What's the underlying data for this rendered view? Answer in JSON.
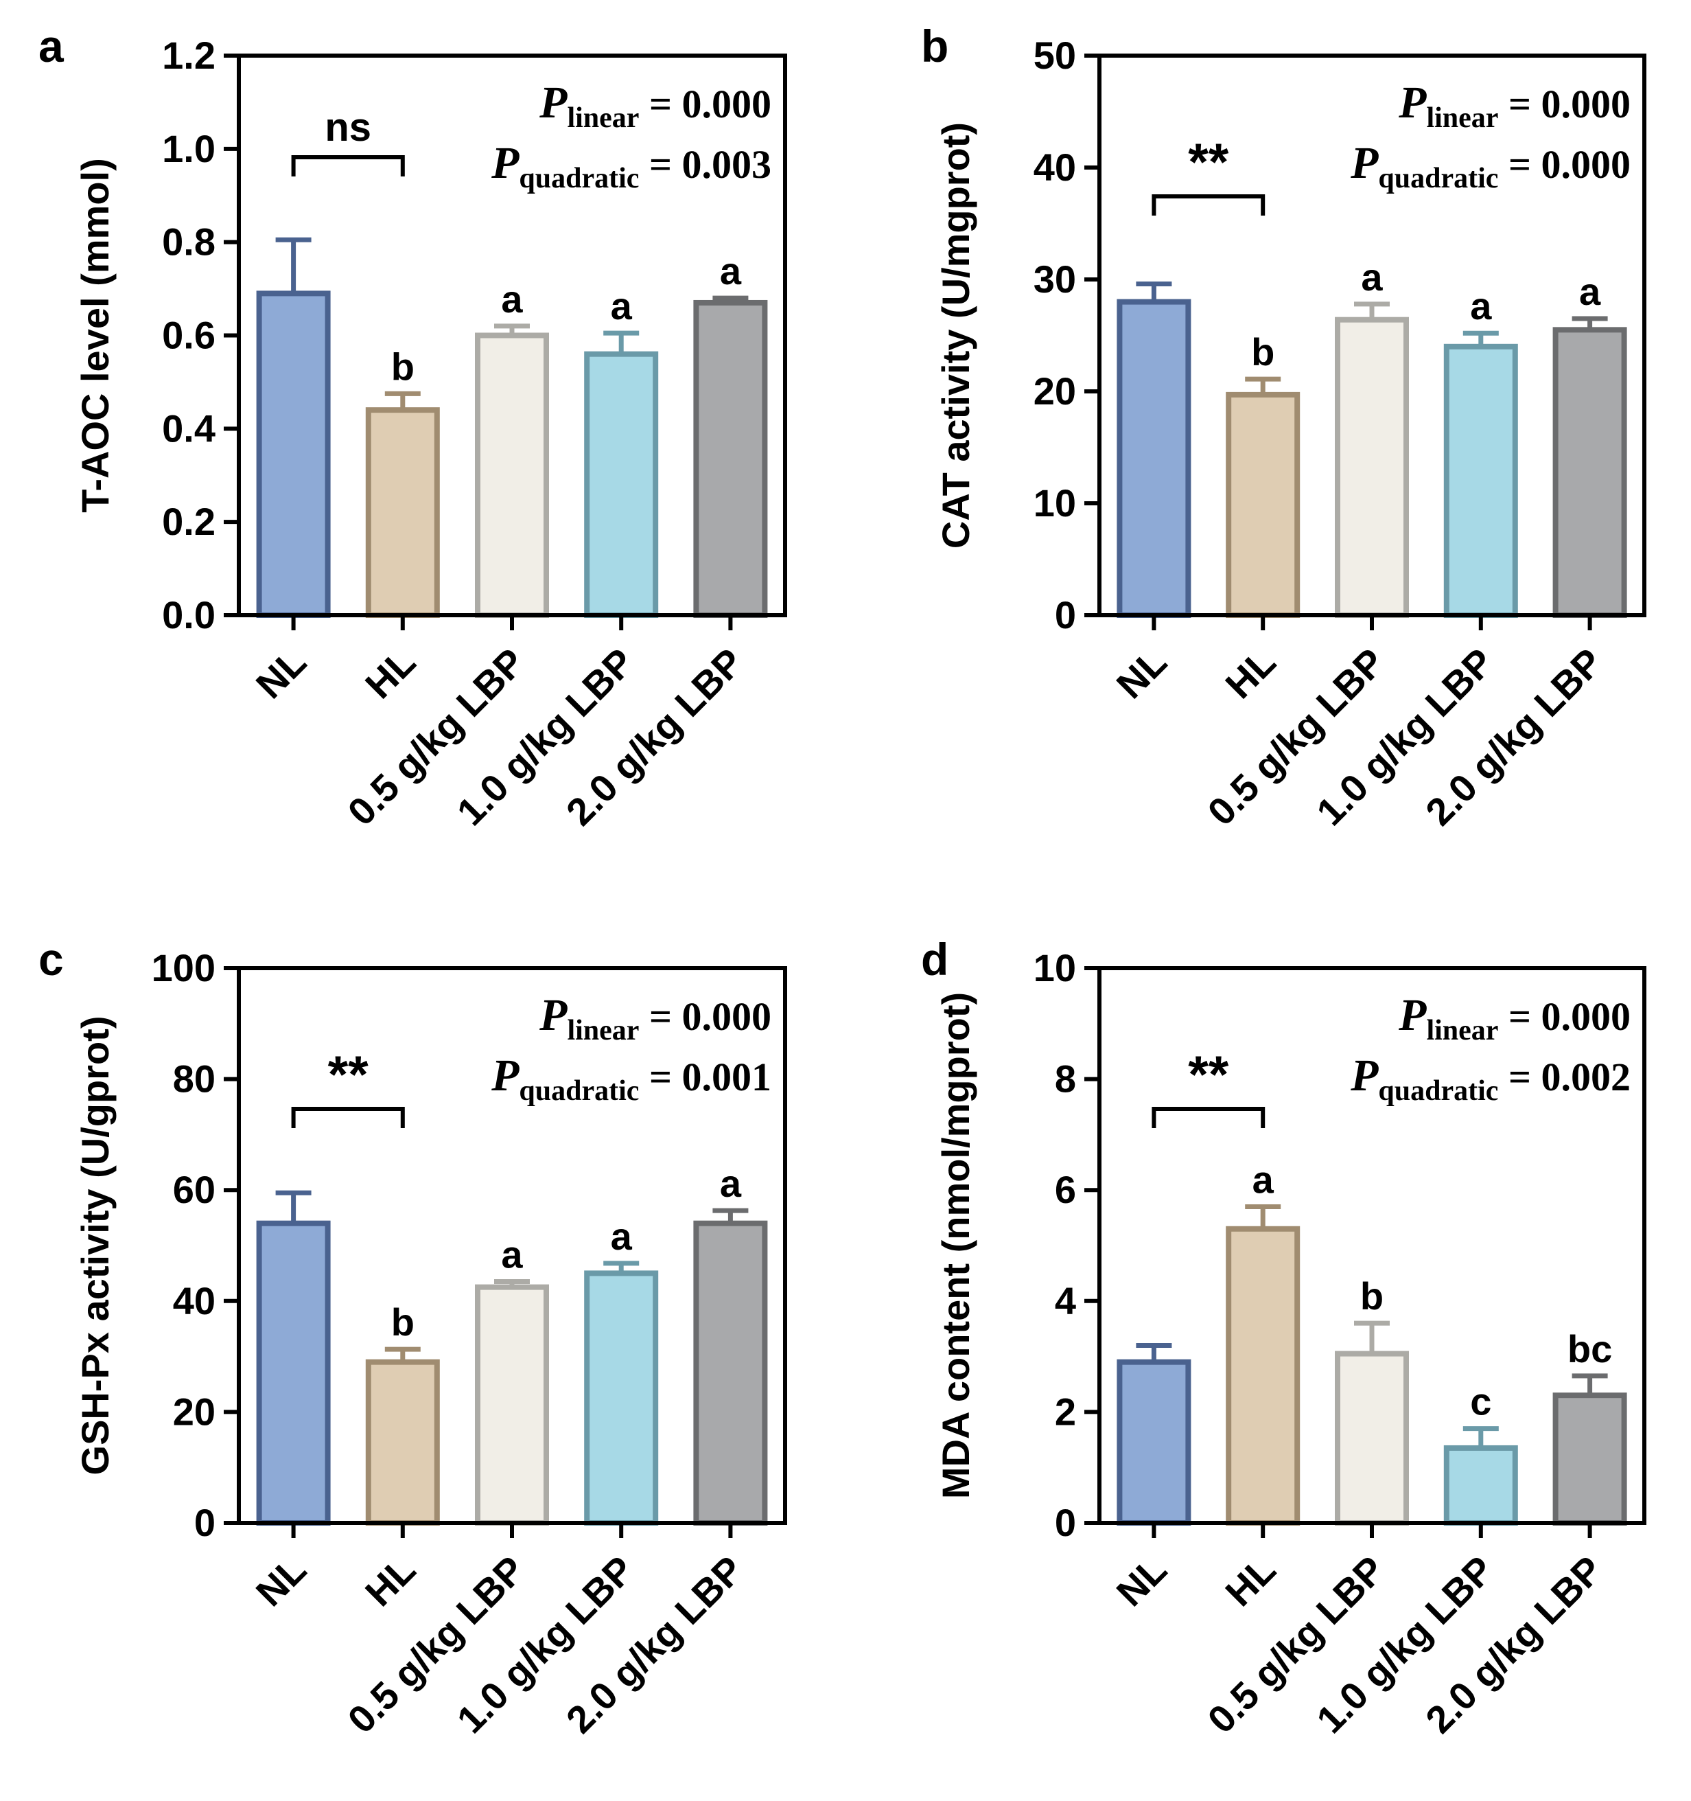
{
  "colors": {
    "NL": {
      "fill": "#8eaad6",
      "stroke": "#4a628f"
    },
    "HL": {
      "fill": "#dfcdb3",
      "stroke": "#a08c70"
    },
    "0.5 g/kg LBP": {
      "fill": "#f1eee7",
      "stroke": "#acaba6"
    },
    "1.0 g/kg LBP": {
      "fill": "#a7d9e6",
      "stroke": "#6a9aa8"
    },
    "2.0 g/kg LBP": {
      "fill": "#a8a9ab",
      "stroke": "#6b6c6e"
    },
    "axis": "#000000"
  },
  "chart_data": [
    {
      "panel": "a",
      "type": "bar",
      "ylabel": "T-AOC level (mmol)",
      "ylim": [
        0,
        1.2
      ],
      "yticks": [
        0.0,
        0.2,
        0.4,
        0.6,
        0.8,
        1.0,
        1.2
      ],
      "ytick_labels": [
        "0.0",
        "0.2",
        "0.4",
        "0.6",
        "0.8",
        "1.0",
        "1.2"
      ],
      "categories": [
        "NL",
        "HL",
        "0.5 g/kg LBP",
        "1.0 g/kg LBP",
        "2.0 g/kg LBP"
      ],
      "values": [
        0.69,
        0.44,
        0.6,
        0.56,
        0.67
      ],
      "errors": [
        0.115,
        0.035,
        0.02,
        0.045,
        0.01
      ],
      "letters": [
        "",
        "b",
        "a",
        "a",
        "a"
      ],
      "significance": "ns",
      "p_linear": "0.000",
      "p_quadratic": "0.003"
    },
    {
      "panel": "b",
      "type": "bar",
      "ylabel": "CAT activity (U/mgprot)",
      "ylim": [
        0,
        50
      ],
      "yticks": [
        0,
        10,
        20,
        30,
        40,
        50
      ],
      "ytick_labels": [
        "0",
        "10",
        "20",
        "30",
        "40",
        "50"
      ],
      "categories": [
        "NL",
        "HL",
        "0.5 g/kg LBP",
        "1.0 g/kg LBP",
        "2.0 g/kg LBP"
      ],
      "values": [
        28.0,
        19.7,
        26.4,
        24.0,
        25.5
      ],
      "errors": [
        1.6,
        1.4,
        1.4,
        1.2,
        1.0
      ],
      "letters": [
        "",
        "b",
        "a",
        "a",
        "a"
      ],
      "significance": "**",
      "p_linear": "0.000",
      "p_quadratic": "0.000"
    },
    {
      "panel": "c",
      "type": "bar",
      "ylabel": "GSH-Px activity (U/gprot)",
      "ylim": [
        0,
        100
      ],
      "yticks": [
        0,
        20,
        40,
        60,
        80,
        100
      ],
      "ytick_labels": [
        "0",
        "20",
        "40",
        "60",
        "80",
        "100"
      ],
      "categories": [
        "NL",
        "HL",
        "0.5 g/kg LBP",
        "1.0 g/kg LBP",
        "2.0 g/kg LBP"
      ],
      "values": [
        54.0,
        29.0,
        42.5,
        45.0,
        54.0
      ],
      "errors": [
        5.5,
        2.3,
        1.0,
        1.8,
        2.3
      ],
      "letters": [
        "",
        "b",
        "a",
        "a",
        "a"
      ],
      "significance": "**",
      "p_linear": "0.000",
      "p_quadratic": "0.001"
    },
    {
      "panel": "d",
      "type": "bar",
      "ylabel": "MDA content (nmol/mgprot)",
      "ylim": [
        0,
        10
      ],
      "yticks": [
        0,
        2,
        4,
        6,
        8,
        10
      ],
      "ytick_labels": [
        "0",
        "2",
        "4",
        "6",
        "8",
        "10"
      ],
      "categories": [
        "NL",
        "HL",
        "0.5 g/kg LBP",
        "1.0 g/kg LBP",
        "2.0 g/kg LBP"
      ],
      "values": [
        2.9,
        5.3,
        3.05,
        1.35,
        2.3
      ],
      "errors": [
        0.3,
        0.4,
        0.55,
        0.35,
        0.35
      ],
      "letters": [
        "",
        "a",
        "b",
        "c",
        "bc"
      ],
      "significance": "**",
      "p_linear": "0.000",
      "p_quadratic": "0.002"
    }
  ]
}
